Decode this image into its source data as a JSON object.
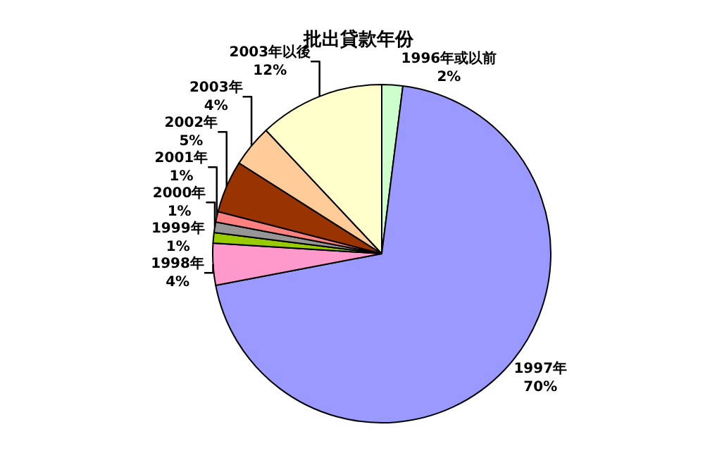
{
  "chart_data": {
    "type": "pie",
    "title": "批出貸款年份",
    "categories": [
      "1996年或以前",
      "1997年",
      "1998年",
      "1999年",
      "2000年",
      "2001年",
      "2002年",
      "2003年",
      "2003年以後"
    ],
    "values": [
      2,
      70,
      4,
      1,
      1,
      1,
      5,
      4,
      12
    ],
    "value_labels": [
      "2%",
      "70%",
      "4%",
      "1%",
      "1%",
      "1%",
      "5%",
      "4%",
      "12%"
    ],
    "colors": [
      "#ccffcc",
      "#9999ff",
      "#ff99cc",
      "#99cc00",
      "#969696",
      "#ff8080",
      "#993300",
      "#ffcc99",
      "#ffffcc"
    ],
    "legend": false
  }
}
